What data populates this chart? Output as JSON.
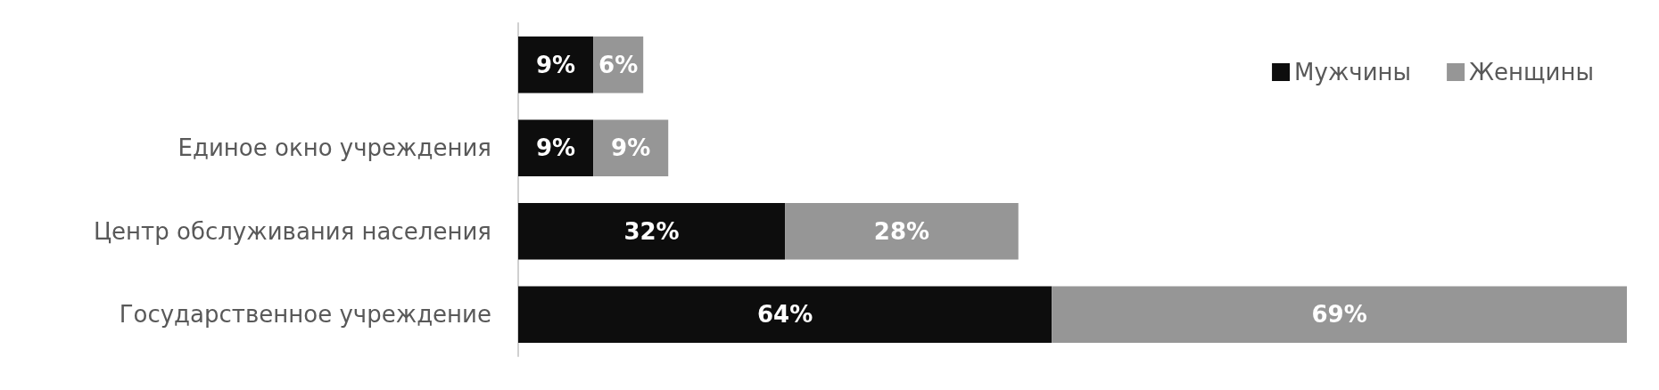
{
  "chart_data": {
    "type": "bar",
    "orientation": "horizontal",
    "stacked": true,
    "legend": "top right",
    "categories": [
      null,
      "Единое окно учреждения",
      "Центр обслуживания населения",
      "Государственное учреждение"
    ],
    "series": [
      {
        "name": "Мужчины",
        "color": "#0d0d0d",
        "values": [
          9,
          9,
          32,
          64
        ],
        "value_labels": [
          "9%",
          "9%",
          "32%",
          "64%"
        ]
      },
      {
        "name": "Женщины",
        "color": "#969696",
        "values": [
          6,
          9,
          28,
          69
        ],
        "value_labels": [
          "6%",
          "9%",
          "28%",
          "69%"
        ]
      }
    ]
  }
}
